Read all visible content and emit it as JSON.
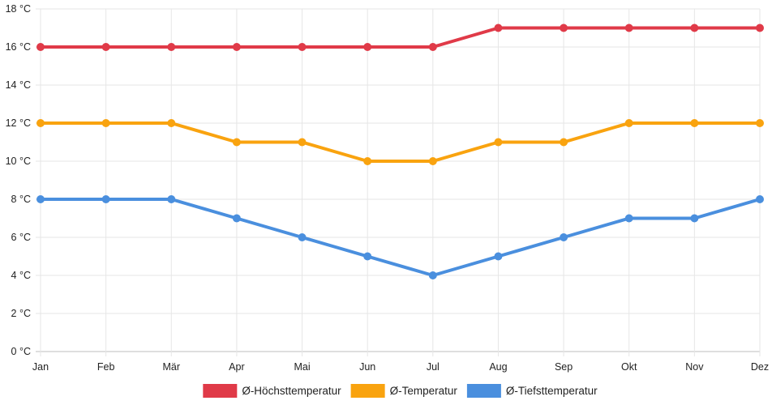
{
  "chart_data": {
    "type": "line",
    "categories": [
      "Jan",
      "Feb",
      "Mär",
      "Apr",
      "Mai",
      "Jun",
      "Jul",
      "Aug",
      "Sep",
      "Okt",
      "Nov",
      "Dez"
    ],
    "y_unit": "°C",
    "ylim": [
      0,
      18
    ],
    "y_step": 2,
    "grid": true,
    "legend_position": "bottom",
    "series": [
      {
        "name": "Ø-Höchsttemperatur",
        "color": "#e03a48",
        "values": [
          16,
          16,
          16,
          16,
          16,
          16,
          16,
          17,
          17,
          17,
          17,
          17
        ]
      },
      {
        "name": "Ø-Temperatur",
        "color": "#f9a30f",
        "values": [
          12,
          12,
          12,
          11,
          11,
          10,
          10,
          11,
          11,
          12,
          12,
          12
        ]
      },
      {
        "name": "Ø-Tiefsttemperatur",
        "color": "#4a8fde",
        "values": [
          8,
          8,
          8,
          7,
          6,
          5,
          4,
          5,
          6,
          7,
          7,
          8
        ]
      }
    ]
  }
}
